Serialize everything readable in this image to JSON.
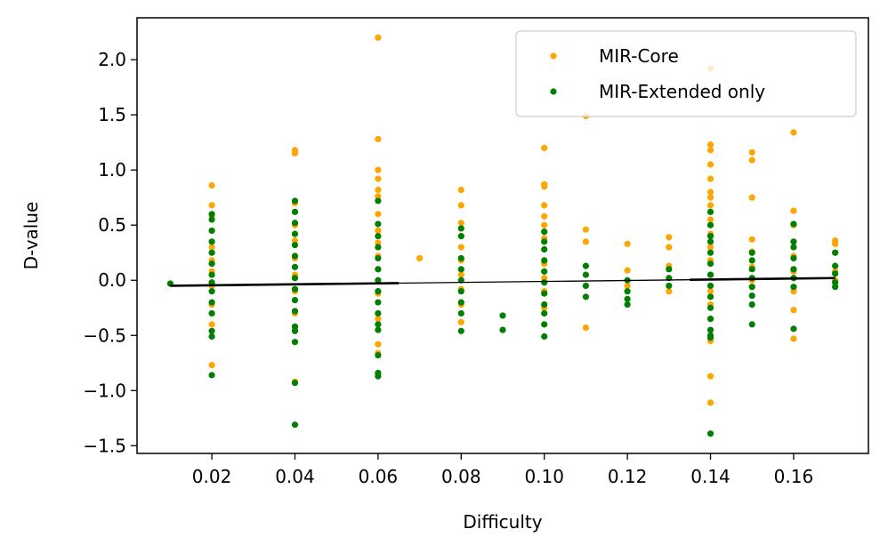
{
  "chart_data": {
    "type": "scatter",
    "xlabel": "Difficulty",
    "ylabel": "D-value",
    "xlim": [
      0.002,
      0.178
    ],
    "ylim": [
      -1.57,
      2.38
    ],
    "xticks": [
      0.02,
      0.04,
      0.06,
      0.08,
      0.1,
      0.12,
      0.14,
      0.16
    ],
    "xtick_labels": [
      "0.02",
      "0.04",
      "0.06",
      "0.08",
      "0.10",
      "0.12",
      "0.14",
      "0.16"
    ],
    "yticks": [
      -1.5,
      -1.0,
      -0.5,
      0.0,
      0.5,
      1.0,
      1.5,
      2.0
    ],
    "ytick_labels": [
      "−1.5",
      "−1.0",
      "−0.5",
      "0.0",
      "0.5",
      "1.0",
      "1.5",
      "2.0"
    ],
    "grid": false,
    "legend_position": "top-right",
    "series": [
      {
        "name": "MIR-Core",
        "color": "#ffa500",
        "points": [
          {
            "x": 0.02,
            "y": 0.86
          },
          {
            "x": 0.02,
            "y": 0.68
          },
          {
            "x": 0.02,
            "y": 0.58
          },
          {
            "x": 0.02,
            "y": 0.45
          },
          {
            "x": 0.02,
            "y": 0.3
          },
          {
            "x": 0.02,
            "y": 0.18
          },
          {
            "x": 0.02,
            "y": 0.08
          },
          {
            "x": 0.02,
            "y": -0.05
          },
          {
            "x": 0.02,
            "y": -0.22
          },
          {
            "x": 0.02,
            "y": -0.4
          },
          {
            "x": 0.02,
            "y": -0.77
          },
          {
            "x": 0.04,
            "y": 1.18
          },
          {
            "x": 0.04,
            "y": 1.15
          },
          {
            "x": 0.04,
            "y": 0.7
          },
          {
            "x": 0.04,
            "y": 0.62
          },
          {
            "x": 0.04,
            "y": 0.5
          },
          {
            "x": 0.04,
            "y": 0.36
          },
          {
            "x": 0.04,
            "y": 0.2
          },
          {
            "x": 0.04,
            "y": 0.05
          },
          {
            "x": 0.04,
            "y": -0.1
          },
          {
            "x": 0.04,
            "y": -0.3
          },
          {
            "x": 0.04,
            "y": -0.45
          },
          {
            "x": 0.04,
            "y": -0.92
          },
          {
            "x": 0.06,
            "y": 2.2
          },
          {
            "x": 0.06,
            "y": 1.28
          },
          {
            "x": 0.06,
            "y": 1.0
          },
          {
            "x": 0.06,
            "y": 0.92
          },
          {
            "x": 0.06,
            "y": 0.82
          },
          {
            "x": 0.06,
            "y": 0.76
          },
          {
            "x": 0.06,
            "y": 0.6
          },
          {
            "x": 0.06,
            "y": 0.45
          },
          {
            "x": 0.06,
            "y": 0.34
          },
          {
            "x": 0.06,
            "y": 0.22
          },
          {
            "x": 0.06,
            "y": 0.1
          },
          {
            "x": 0.06,
            "y": -0.12
          },
          {
            "x": 0.06,
            "y": -0.35
          },
          {
            "x": 0.06,
            "y": -0.58
          },
          {
            "x": 0.06,
            "y": -0.66
          },
          {
            "x": 0.07,
            "y": 0.2
          },
          {
            "x": 0.08,
            "y": 0.82
          },
          {
            "x": 0.08,
            "y": 0.68
          },
          {
            "x": 0.08,
            "y": 0.52
          },
          {
            "x": 0.08,
            "y": 0.4
          },
          {
            "x": 0.08,
            "y": 0.3
          },
          {
            "x": 0.08,
            "y": 0.18
          },
          {
            "x": 0.08,
            "y": 0.05
          },
          {
            "x": 0.08,
            "y": -0.08
          },
          {
            "x": 0.08,
            "y": -0.22
          },
          {
            "x": 0.08,
            "y": -0.38
          },
          {
            "x": 0.1,
            "y": 1.2
          },
          {
            "x": 0.1,
            "y": 0.87
          },
          {
            "x": 0.1,
            "y": 0.85
          },
          {
            "x": 0.1,
            "y": 0.68
          },
          {
            "x": 0.1,
            "y": 0.58
          },
          {
            "x": 0.1,
            "y": 0.5
          },
          {
            "x": 0.1,
            "y": 0.38
          },
          {
            "x": 0.1,
            "y": 0.28
          },
          {
            "x": 0.1,
            "y": 0.15
          },
          {
            "x": 0.1,
            "y": 0.02
          },
          {
            "x": 0.1,
            "y": -0.1
          },
          {
            "x": 0.1,
            "y": -0.25
          },
          {
            "x": 0.11,
            "y": 1.49
          },
          {
            "x": 0.11,
            "y": 0.46
          },
          {
            "x": 0.11,
            "y": 0.35
          },
          {
            "x": 0.11,
            "y": -0.43
          },
          {
            "x": 0.12,
            "y": 0.33
          },
          {
            "x": 0.12,
            "y": 0.09
          },
          {
            "x": 0.12,
            "y": -0.05
          },
          {
            "x": 0.13,
            "y": 0.39
          },
          {
            "x": 0.13,
            "y": 0.3
          },
          {
            "x": 0.13,
            "y": 0.13
          },
          {
            "x": 0.13,
            "y": -0.1
          },
          {
            "x": 0.14,
            "y": 1.92
          },
          {
            "x": 0.14,
            "y": 1.23
          },
          {
            "x": 0.14,
            "y": 1.18
          },
          {
            "x": 0.14,
            "y": 1.05
          },
          {
            "x": 0.14,
            "y": 0.92
          },
          {
            "x": 0.14,
            "y": 0.8
          },
          {
            "x": 0.14,
            "y": 0.75
          },
          {
            "x": 0.14,
            "y": 0.68
          },
          {
            "x": 0.14,
            "y": 0.55
          },
          {
            "x": 0.14,
            "y": 0.42
          },
          {
            "x": 0.14,
            "y": 0.3
          },
          {
            "x": 0.14,
            "y": 0.18
          },
          {
            "x": 0.14,
            "y": 0.05
          },
          {
            "x": 0.14,
            "y": -0.1
          },
          {
            "x": 0.14,
            "y": -0.22
          },
          {
            "x": 0.14,
            "y": -0.35
          },
          {
            "x": 0.14,
            "y": -0.55
          },
          {
            "x": 0.14,
            "y": -0.87
          },
          {
            "x": 0.14,
            "y": -1.11
          },
          {
            "x": 0.15,
            "y": 1.16
          },
          {
            "x": 0.15,
            "y": 1.09
          },
          {
            "x": 0.15,
            "y": 0.75
          },
          {
            "x": 0.15,
            "y": 0.37
          },
          {
            "x": 0.15,
            "y": 0.26
          },
          {
            "x": 0.15,
            "y": 0.12
          },
          {
            "x": 0.15,
            "y": 0.0
          },
          {
            "x": 0.16,
            "y": 1.34
          },
          {
            "x": 0.16,
            "y": 0.63
          },
          {
            "x": 0.16,
            "y": 0.5
          },
          {
            "x": 0.16,
            "y": 0.22
          },
          {
            "x": 0.16,
            "y": 0.08
          },
          {
            "x": 0.16,
            "y": -0.1
          },
          {
            "x": 0.16,
            "y": -0.27
          },
          {
            "x": 0.16,
            "y": -0.53
          },
          {
            "x": 0.17,
            "y": 0.36
          },
          {
            "x": 0.17,
            "y": 0.33
          },
          {
            "x": 0.17,
            "y": 0.25
          },
          {
            "x": 0.17,
            "y": 0.08
          },
          {
            "x": 0.17,
            "y": 0.0
          }
        ]
      },
      {
        "name": "MIR-Extended only",
        "color": "#008000",
        "points": [
          {
            "x": 0.01,
            "y": -0.03
          },
          {
            "x": 0.02,
            "y": 0.6
          },
          {
            "x": 0.02,
            "y": 0.55
          },
          {
            "x": 0.02,
            "y": 0.45
          },
          {
            "x": 0.02,
            "y": 0.35
          },
          {
            "x": 0.02,
            "y": 0.25
          },
          {
            "x": 0.02,
            "y": 0.15
          },
          {
            "x": 0.02,
            "y": 0.05
          },
          {
            "x": 0.02,
            "y": -0.02
          },
          {
            "x": 0.02,
            "y": -0.1
          },
          {
            "x": 0.02,
            "y": -0.2
          },
          {
            "x": 0.02,
            "y": -0.3
          },
          {
            "x": 0.02,
            "y": -0.46
          },
          {
            "x": 0.02,
            "y": -0.51
          },
          {
            "x": 0.02,
            "y": -0.86
          },
          {
            "x": 0.04,
            "y": 0.72
          },
          {
            "x": 0.04,
            "y": 0.62
          },
          {
            "x": 0.04,
            "y": 0.52
          },
          {
            "x": 0.04,
            "y": 0.42
          },
          {
            "x": 0.04,
            "y": 0.32
          },
          {
            "x": 0.04,
            "y": 0.22
          },
          {
            "x": 0.04,
            "y": 0.12
          },
          {
            "x": 0.04,
            "y": 0.02
          },
          {
            "x": 0.04,
            "y": -0.08
          },
          {
            "x": 0.04,
            "y": -0.18
          },
          {
            "x": 0.04,
            "y": -0.28
          },
          {
            "x": 0.04,
            "y": -0.42
          },
          {
            "x": 0.04,
            "y": -0.46
          },
          {
            "x": 0.04,
            "y": -0.56
          },
          {
            "x": 0.04,
            "y": -0.93
          },
          {
            "x": 0.04,
            "y": -1.31
          },
          {
            "x": 0.06,
            "y": 0.72
          },
          {
            "x": 0.06,
            "y": 0.51
          },
          {
            "x": 0.06,
            "y": 0.4
          },
          {
            "x": 0.06,
            "y": 0.3
          },
          {
            "x": 0.06,
            "y": 0.2
          },
          {
            "x": 0.06,
            "y": 0.1
          },
          {
            "x": 0.06,
            "y": 0.0
          },
          {
            "x": 0.06,
            "y": -0.1
          },
          {
            "x": 0.06,
            "y": -0.2
          },
          {
            "x": 0.06,
            "y": -0.3
          },
          {
            "x": 0.06,
            "y": -0.4
          },
          {
            "x": 0.06,
            "y": -0.45
          },
          {
            "x": 0.06,
            "y": -0.68
          },
          {
            "x": 0.06,
            "y": -0.84
          },
          {
            "x": 0.06,
            "y": -0.87
          },
          {
            "x": 0.08,
            "y": 0.47
          },
          {
            "x": 0.08,
            "y": 0.4
          },
          {
            "x": 0.08,
            "y": 0.2
          },
          {
            "x": 0.08,
            "y": 0.1
          },
          {
            "x": 0.08,
            "y": 0.0
          },
          {
            "x": 0.08,
            "y": -0.1
          },
          {
            "x": 0.08,
            "y": -0.2
          },
          {
            "x": 0.08,
            "y": -0.3
          },
          {
            "x": 0.08,
            "y": -0.46
          },
          {
            "x": 0.09,
            "y": -0.32
          },
          {
            "x": 0.09,
            "y": -0.45
          },
          {
            "x": 0.1,
            "y": 0.44
          },
          {
            "x": 0.1,
            "y": 0.35
          },
          {
            "x": 0.1,
            "y": 0.28
          },
          {
            "x": 0.1,
            "y": 0.18
          },
          {
            "x": 0.1,
            "y": 0.08
          },
          {
            "x": 0.1,
            "y": -0.02
          },
          {
            "x": 0.1,
            "y": -0.12
          },
          {
            "x": 0.1,
            "y": -0.22
          },
          {
            "x": 0.1,
            "y": -0.3
          },
          {
            "x": 0.1,
            "y": -0.4
          },
          {
            "x": 0.1,
            "y": -0.51
          },
          {
            "x": 0.11,
            "y": 0.13
          },
          {
            "x": 0.11,
            "y": 0.05
          },
          {
            "x": 0.11,
            "y": -0.05
          },
          {
            "x": 0.11,
            "y": -0.15
          },
          {
            "x": 0.12,
            "y": 0.0
          },
          {
            "x": 0.12,
            "y": -0.1
          },
          {
            "x": 0.12,
            "y": -0.17
          },
          {
            "x": 0.12,
            "y": -0.22
          },
          {
            "x": 0.13,
            "y": 0.1
          },
          {
            "x": 0.13,
            "y": 0.02
          },
          {
            "x": 0.13,
            "y": -0.05
          },
          {
            "x": 0.14,
            "y": 0.62
          },
          {
            "x": 0.14,
            "y": 0.5
          },
          {
            "x": 0.14,
            "y": 0.4
          },
          {
            "x": 0.14,
            "y": 0.35
          },
          {
            "x": 0.14,
            "y": 0.25
          },
          {
            "x": 0.14,
            "y": 0.15
          },
          {
            "x": 0.14,
            "y": 0.05
          },
          {
            "x": 0.14,
            "y": -0.05
          },
          {
            "x": 0.14,
            "y": -0.15
          },
          {
            "x": 0.14,
            "y": -0.25
          },
          {
            "x": 0.14,
            "y": -0.35
          },
          {
            "x": 0.14,
            "y": -0.45
          },
          {
            "x": 0.14,
            "y": -0.5
          },
          {
            "x": 0.14,
            "y": -0.52
          },
          {
            "x": 0.14,
            "y": -1.39
          },
          {
            "x": 0.15,
            "y": 0.25
          },
          {
            "x": 0.15,
            "y": 0.18
          },
          {
            "x": 0.15,
            "y": 0.1
          },
          {
            "x": 0.15,
            "y": 0.02
          },
          {
            "x": 0.15,
            "y": -0.06
          },
          {
            "x": 0.15,
            "y": -0.14
          },
          {
            "x": 0.15,
            "y": -0.22
          },
          {
            "x": 0.15,
            "y": -0.4
          },
          {
            "x": 0.16,
            "y": 0.51
          },
          {
            "x": 0.16,
            "y": 0.35
          },
          {
            "x": 0.16,
            "y": 0.3
          },
          {
            "x": 0.16,
            "y": 0.2
          },
          {
            "x": 0.16,
            "y": 0.1
          },
          {
            "x": 0.16,
            "y": 0.02
          },
          {
            "x": 0.16,
            "y": -0.06
          },
          {
            "x": 0.16,
            "y": -0.44
          },
          {
            "x": 0.17,
            "y": 0.25
          },
          {
            "x": 0.17,
            "y": 0.13
          },
          {
            "x": 0.17,
            "y": 0.06
          },
          {
            "x": 0.17,
            "y": -0.02
          },
          {
            "x": 0.17,
            "y": -0.06
          }
        ]
      }
    ],
    "trend_line": {
      "color": "#000000",
      "points": [
        {
          "x": 0.01,
          "y": -0.05
        },
        {
          "x": 0.17,
          "y": 0.02
        }
      ]
    }
  }
}
